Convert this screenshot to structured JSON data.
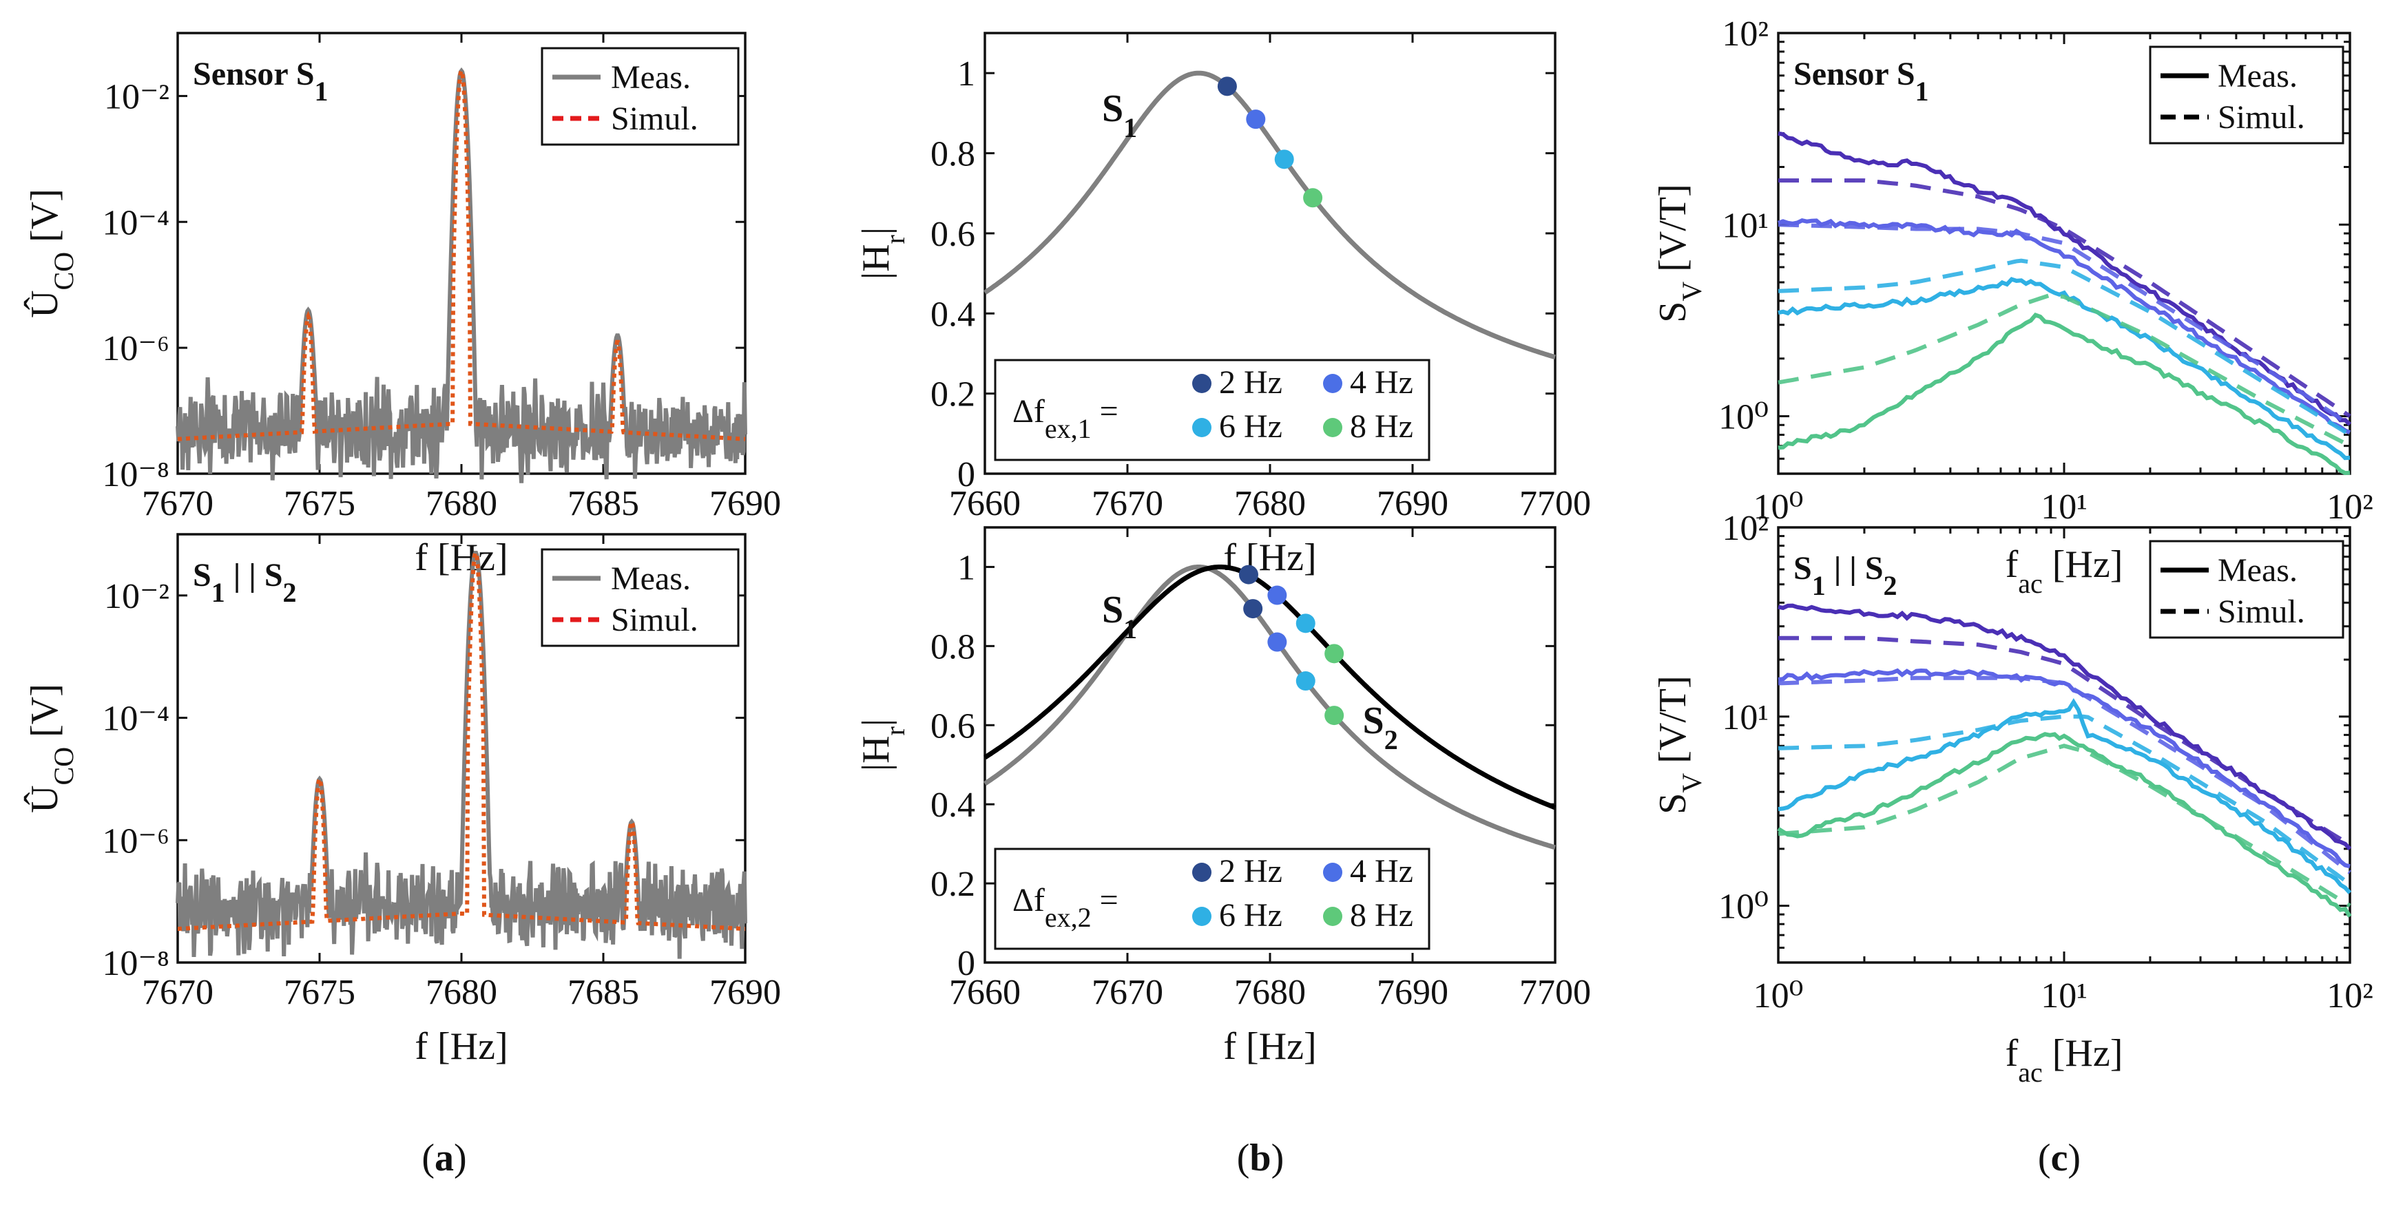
{
  "panel_labels": [
    "a",
    "b",
    "c"
  ],
  "chart_data": [
    {
      "id": "a_top",
      "type": "line",
      "panel": "a",
      "title": "Sensor S",
      "title_sub": "1",
      "xlabel": "f [Hz]",
      "ylabel": "Û",
      "ylabel_sub": "CO",
      "ylabel_unit": "[V]",
      "xlim": [
        7670,
        7690
      ],
      "ylim_log10": [
        -8,
        -1
      ],
      "yscale": "log",
      "xticks": [
        7670,
        7675,
        7680,
        7685,
        7690
      ],
      "yticks": [
        {
          "exp": -8
        },
        {
          "exp": -6
        },
        {
          "exp": -4
        },
        {
          "exp": -2
        }
      ],
      "legend": [
        "Meas.",
        "Simul."
      ],
      "noise_floor_log10": -7.3,
      "peaks": [
        {
          "f": 7674.6,
          "meas_log10": -5.4,
          "sim_log10": -5.5
        },
        {
          "f": 7680.0,
          "meas_log10": -1.6,
          "sim_log10": -1.6
        },
        {
          "f": 7685.5,
          "meas_log10": -5.8,
          "sim_log10": -5.9
        }
      ],
      "colors": {
        "meas": "#7f7f7f",
        "sim": "#e0561a"
      }
    },
    {
      "id": "a_bot",
      "type": "line",
      "panel": "a",
      "title": "S",
      "title_sub": "1",
      "title_mid": " | | ",
      "title_tail": "S",
      "title_tail_sub": "2",
      "xlabel": "f [Hz]",
      "ylabel": "Û",
      "ylabel_sub": "CO",
      "ylabel_unit": "[V]",
      "xlim": [
        7670,
        7690
      ],
      "ylim_log10": [
        -8,
        -1
      ],
      "yscale": "log",
      "xticks": [
        7670,
        7675,
        7680,
        7685,
        7690
      ],
      "yticks": [
        {
          "exp": -8
        },
        {
          "exp": -6
        },
        {
          "exp": -4
        },
        {
          "exp": -2
        }
      ],
      "legend": [
        "Meas.",
        "Simul."
      ],
      "noise_floor_log10": -7.1,
      "peaks": [
        {
          "f": 7675.0,
          "meas_log10": -5.0,
          "sim_log10": -5.0
        },
        {
          "f": 7680.5,
          "meas_log10": -1.3,
          "sim_log10": -1.3
        },
        {
          "f": 7686.0,
          "meas_log10": -5.7,
          "sim_log10": -5.7
        }
      ],
      "colors": {
        "meas": "#7f7f7f",
        "sim": "#e0561a"
      }
    },
    {
      "id": "b_top",
      "type": "line",
      "panel": "b",
      "xlabel": "f [Hz]",
      "ylabel": "|H",
      "ylabel_sub": "r",
      "ylabel_end": "|",
      "xlim": [
        7660,
        7700
      ],
      "ylim": [
        0,
        1.1
      ],
      "xticks": [
        7660,
        7670,
        7680,
        7690,
        7700
      ],
      "yticks": [
        0,
        0.2,
        0.4,
        0.6,
        0.8,
        1
      ],
      "curves": [
        {
          "name": "S",
          "sub": "1",
          "f0": 7675,
          "hw": 7.6,
          "color": "#808080"
        }
      ],
      "markers": [
        {
          "curve": 0,
          "f": 7677,
          "color": "#2c4a8c",
          "label": "2 Hz"
        },
        {
          "curve": 0,
          "f": 7679,
          "color": "#4b6fe6",
          "label": "4 Hz"
        },
        {
          "curve": 0,
          "f": 7681,
          "color": "#2fb0e4",
          "label": "6 Hz"
        },
        {
          "curve": 0,
          "f": 7683,
          "color": "#5ec97a",
          "label": "8 Hz"
        }
      ],
      "legend_prefix": "Δf",
      "legend_sub": "ex,1",
      "legend_eq": "="
    },
    {
      "id": "b_bot",
      "type": "line",
      "panel": "b",
      "xlabel": "f [Hz]",
      "ylabel": "|H",
      "ylabel_sub": "r",
      "ylabel_end": "|",
      "xlim": [
        7660,
        7700
      ],
      "ylim": [
        0,
        1.1
      ],
      "xticks": [
        7660,
        7670,
        7680,
        7690,
        7700
      ],
      "yticks": [
        0,
        0.2,
        0.4,
        0.6,
        0.8,
        1
      ],
      "curves": [
        {
          "name": "S",
          "sub": "1",
          "f0": 7675,
          "hw": 7.6,
          "color": "#808080"
        },
        {
          "name": "S",
          "sub": "2",
          "f0": 7676.5,
          "hw": 10,
          "color": "#000000"
        }
      ],
      "markers": [
        {
          "curve": 1,
          "f": 7678.5,
          "color": "#2c4a8c"
        },
        {
          "curve": 1,
          "f": 7680.5,
          "color": "#4b6fe6"
        },
        {
          "curve": 1,
          "f": 7682.5,
          "color": "#2fb0e4"
        },
        {
          "curve": 1,
          "f": 7684.5,
          "color": "#5ec97a"
        },
        {
          "curve": 0,
          "f": 7678.8,
          "color": "#2c4a8c"
        },
        {
          "curve": 0,
          "f": 7680.5,
          "color": "#4b6fe6"
        },
        {
          "curve": 0,
          "f": 7682.5,
          "color": "#2fb0e4"
        },
        {
          "curve": 0,
          "f": 7684.5,
          "color": "#5ec97a"
        }
      ],
      "legend_prefix": "Δf",
      "legend_sub": "ex,2",
      "legend_eq": "=",
      "legend_labels": [
        "2 Hz",
        "4 Hz",
        "6 Hz",
        "8 Hz"
      ],
      "legend_colors": [
        "#2c4a8c",
        "#4b6fe6",
        "#2fb0e4",
        "#5ec97a"
      ]
    },
    {
      "id": "c_top",
      "type": "line",
      "panel": "c",
      "title": "Sensor S",
      "title_sub": "1",
      "xlabel": "f",
      "xlabel_sub": "ac",
      "xlabel_unit": "[Hz]",
      "ylabel": "S",
      "ylabel_sub": "V",
      "ylabel_unit": "[V/T]",
      "xscale": "log",
      "yscale": "log",
      "xlim_log10": [
        0,
        2
      ],
      "ylim_log10": [
        -0.3,
        2
      ],
      "xticks": [
        {
          "exp": 0
        },
        {
          "exp": 1
        },
        {
          "exp": 2
        }
      ],
      "yticks": [
        {
          "exp": 0
        },
        {
          "exp": 1
        },
        {
          "exp": 2
        }
      ],
      "legend": [
        "Meas.",
        "Simul."
      ],
      "series": [
        {
          "name": "2 Hz",
          "color": "#4a2fb5",
          "meas": [
            [
              1,
              30
            ],
            [
              2,
              21
            ],
            [
              3,
              21
            ],
            [
              5,
              15
            ],
            [
              7,
              13
            ],
            [
              10,
              9
            ],
            [
              20,
              4.5
            ],
            [
              50,
              1.8
            ],
            [
              100,
              0.9
            ]
          ],
          "sim": [
            [
              1,
              17
            ],
            [
              2,
              17
            ],
            [
              3,
              16
            ],
            [
              5,
              14
            ],
            [
              7,
              12
            ],
            [
              10,
              9.5
            ],
            [
              20,
              5
            ],
            [
              50,
              2
            ],
            [
              100,
              1.0
            ]
          ]
        },
        {
          "name": "4 Hz",
          "color": "#5d64e6",
          "meas": [
            [
              1,
              10.5
            ],
            [
              2,
              10
            ],
            [
              3,
              9.8
            ],
            [
              5,
              9
            ],
            [
              7,
              9
            ],
            [
              10,
              7
            ],
            [
              20,
              3.8
            ],
            [
              50,
              1.6
            ],
            [
              100,
              0.8
            ]
          ],
          "sim": [
            [
              1,
              10
            ],
            [
              2,
              9.7
            ],
            [
              3,
              9.5
            ],
            [
              5,
              9.5
            ],
            [
              7,
              9
            ],
            [
              10,
              8
            ],
            [
              20,
              4.2
            ],
            [
              50,
              1.8
            ],
            [
              100,
              0.9
            ]
          ]
        },
        {
          "name": "6 Hz",
          "color": "#2fb0e4",
          "meas": [
            [
              1,
              3.5
            ],
            [
              2,
              3.8
            ],
            [
              3,
              4
            ],
            [
              5,
              4.6
            ],
            [
              7,
              5.2
            ],
            [
              10,
              4.3
            ],
            [
              20,
              2.5
            ],
            [
              50,
              1.1
            ],
            [
              100,
              0.6
            ]
          ],
          "sim": [
            [
              1,
              4.5
            ],
            [
              2,
              4.7
            ],
            [
              3,
              5
            ],
            [
              5,
              5.8
            ],
            [
              7,
              6.5
            ],
            [
              10,
              6
            ],
            [
              20,
              3.5
            ],
            [
              50,
              1.5
            ],
            [
              100,
              0.8
            ]
          ]
        },
        {
          "name": "8 Hz",
          "color": "#52c48a",
          "meas": [
            [
              1,
              0.7
            ],
            [
              1.5,
              0.8
            ],
            [
              2,
              0.9
            ],
            [
              3,
              1.3
            ],
            [
              5,
              2
            ],
            [
              7,
              3
            ],
            [
              8,
              3.3
            ],
            [
              10,
              2.8
            ],
            [
              20,
              1.8
            ],
            [
              50,
              0.9
            ],
            [
              100,
              0.5
            ]
          ],
          "sim": [
            [
              1,
              1.5
            ],
            [
              2,
              1.8
            ],
            [
              3,
              2.2
            ],
            [
              5,
              3
            ],
            [
              7,
              3.8
            ],
            [
              9,
              4.3
            ],
            [
              10,
              4.2
            ],
            [
              20,
              2.6
            ],
            [
              50,
              1.2
            ],
            [
              100,
              0.7
            ]
          ]
        }
      ]
    },
    {
      "id": "c_bot",
      "type": "line",
      "panel": "c",
      "title": "S",
      "title_sub": "1",
      "title_mid": " | | ",
      "title_tail": "S",
      "title_tail_sub": "2",
      "xlabel": "f",
      "xlabel_sub": "ac",
      "xlabel_unit": "[Hz]",
      "ylabel": "S",
      "ylabel_sub": "V",
      "ylabel_unit": "[V/T]",
      "xscale": "log",
      "yscale": "log",
      "xlim_log10": [
        0,
        2
      ],
      "ylim_log10": [
        -0.3,
        2
      ],
      "xticks": [
        {
          "exp": 0
        },
        {
          "exp": 1
        },
        {
          "exp": 2
        }
      ],
      "yticks": [
        {
          "exp": 0
        },
        {
          "exp": 1
        },
        {
          "exp": 2
        }
      ],
      "legend": [
        "Meas.",
        "Simul."
      ],
      "series": [
        {
          "name": "2 Hz",
          "color": "#4a2fb5",
          "meas": [
            [
              1,
              38
            ],
            [
              2,
              35
            ],
            [
              3,
              34
            ],
            [
              5,
              30
            ],
            [
              7,
              26
            ],
            [
              10,
              21
            ],
            [
              20,
              10
            ],
            [
              50,
              4
            ],
            [
              100,
              2
            ]
          ],
          "sim": [
            [
              1,
              26
            ],
            [
              2,
              26
            ],
            [
              3,
              25
            ],
            [
              5,
              24
            ],
            [
              7,
              22
            ],
            [
              10,
              19
            ],
            [
              20,
              9.5
            ],
            [
              50,
              4
            ],
            [
              100,
              2.1
            ]
          ]
        },
        {
          "name": "4 Hz",
          "color": "#5d64e6",
          "meas": [
            [
              1,
              16
            ],
            [
              2,
              17
            ],
            [
              3,
              17
            ],
            [
              5,
              17
            ],
            [
              7,
              16
            ],
            [
              10,
              15
            ],
            [
              20,
              8.5
            ],
            [
              50,
              3.5
            ],
            [
              100,
              1.6
            ]
          ],
          "sim": [
            [
              1,
              15
            ],
            [
              2,
              15.5
            ],
            [
              3,
              16
            ],
            [
              5,
              16
            ],
            [
              7,
              16
            ],
            [
              10,
              15
            ],
            [
              20,
              8
            ],
            [
              50,
              3.4
            ],
            [
              100,
              1.5
            ]
          ]
        },
        {
          "name": "6 Hz",
          "color": "#2fb0e4",
          "meas": [
            [
              1,
              3.2
            ],
            [
              1.5,
              4.2
            ],
            [
              2,
              5
            ],
            [
              3,
              6
            ],
            [
              5,
              8
            ],
            [
              7,
              10
            ],
            [
              10,
              10.5
            ],
            [
              11,
              12
            ],
            [
              12,
              8
            ],
            [
              20,
              6
            ],
            [
              50,
              2.6
            ],
            [
              100,
              1.2
            ]
          ],
          "sim": [
            [
              1,
              6.8
            ],
            [
              2,
              7
            ],
            [
              3,
              7.5
            ],
            [
              5,
              8.5
            ],
            [
              7,
              9.5
            ],
            [
              10,
              10
            ],
            [
              12,
              10
            ],
            [
              20,
              6.5
            ],
            [
              50,
              2.8
            ],
            [
              100,
              1.3
            ]
          ]
        },
        {
          "name": "8 Hz",
          "color": "#52c48a",
          "meas": [
            [
              1,
              2.5
            ],
            [
              1.2,
              2.3
            ],
            [
              1.5,
              2.8
            ],
            [
              2,
              3
            ],
            [
              3,
              4
            ],
            [
              5,
              5.8
            ],
            [
              7,
              7.5
            ],
            [
              9,
              8
            ],
            [
              10,
              7.8
            ],
            [
              20,
              4.5
            ],
            [
              50,
              1.8
            ],
            [
              100,
              0.9
            ]
          ],
          "sim": [
            [
              1,
              2.4
            ],
            [
              2,
              2.6
            ],
            [
              3,
              3.2
            ],
            [
              5,
              4.5
            ],
            [
              7,
              6
            ],
            [
              10,
              7
            ],
            [
              12,
              6.5
            ],
            [
              20,
              4.3
            ],
            [
              50,
              1.9
            ],
            [
              100,
              1.0
            ]
          ]
        }
      ]
    }
  ]
}
